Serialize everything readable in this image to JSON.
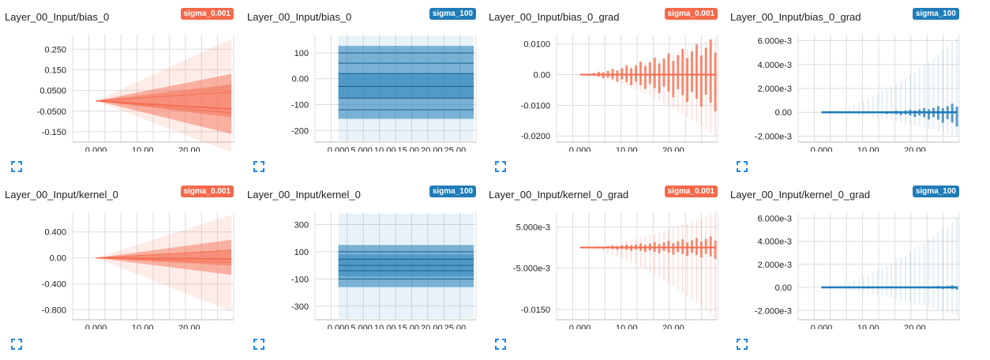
{
  "colors": {
    "sigma_0.001": "#f4694b",
    "sigma_100": "#1f7cb8",
    "grid": "#dcdcdc"
  },
  "panels": [
    {
      "title": "Layer_00_Input/bias_0",
      "run": "sigma_0.001",
      "color": "#f4694b",
      "chart_data": {
        "type": "area",
        "shape": "widen",
        "x": [
          0,
          29
        ],
        "xticks": [
          "0.000",
          "10.00",
          "20.00"
        ],
        "xtick_values": [
          0,
          10,
          20
        ],
        "xlim": [
          -5,
          29.5
        ],
        "yticks": [
          "0.250",
          "0.150",
          "0.0500",
          "-0.0500",
          "-0.150"
        ],
        "ytick_values": [
          0.25,
          0.15,
          0.05,
          -0.05,
          -0.15
        ],
        "ylim": [
          -0.2,
          0.32
        ],
        "start": 0.0,
        "outer_end": [
          -0.25,
          0.3
        ],
        "band_end": [
          -0.16,
          0.13
        ],
        "inner_end": [
          -0.08,
          0.08
        ],
        "median_end": -0.04
      },
      "expand_icon": "fullscreen-icon"
    },
    {
      "title": "Layer_00_Input/bias_0",
      "run": "sigma_100",
      "color": "#1f7cb8",
      "chart_data": {
        "type": "area",
        "shape": "flat",
        "x": [
          0,
          29
        ],
        "xticks": [
          "0.000",
          "5.000",
          "10.00",
          "15.00",
          "20.00",
          "25.00"
        ],
        "xtick_values": [
          0,
          5,
          10,
          15,
          20,
          25
        ],
        "xlim": [
          -5,
          29.5
        ],
        "yticks": [
          "100",
          "0.00",
          "-100",
          "-200"
        ],
        "ytick_values": [
          100,
          0,
          -100,
          -200
        ],
        "ylim": [
          -245,
          170
        ],
        "outer": [
          -240,
          165
        ],
        "band": [
          -155,
          127
        ],
        "inner": [
          -75,
          20
        ],
        "lines": [
          100,
          60,
          20,
          -30,
          -75,
          -120
        ]
      },
      "expand_icon": "fullscreen-icon"
    },
    {
      "title": "Layer_00_Input/bias_0_grad",
      "run": "sigma_0.001",
      "color": "#f4694b",
      "chart_data": {
        "type": "area",
        "shape": "spiky",
        "x": [
          0,
          29
        ],
        "xticks": [
          "0.000",
          "10.00",
          "20.00"
        ],
        "xtick_values": [
          0,
          10,
          20
        ],
        "xlim": [
          -5,
          29.5
        ],
        "yticks": [
          "0.0100",
          "0.00",
          "-0.0100",
          "-0.0200"
        ],
        "ytick_values": [
          0.01,
          0,
          -0.01,
          -0.02
        ],
        "ylim": [
          -0.022,
          0.013
        ],
        "outer_end": [
          -0.02,
          0.012
        ],
        "band_end": [
          -0.012,
          0.012
        ]
      },
      "expand_icon": "fullscreen-icon"
    },
    {
      "title": "Layer_00_Input/bias_0_grad",
      "run": "sigma_100",
      "color": "#1f7cb8",
      "chart_data": {
        "type": "area",
        "shape": "spiky-small",
        "x": [
          0,
          29
        ],
        "xticks": [
          "0.000",
          "10.00",
          "20.00"
        ],
        "xtick_values": [
          0,
          10,
          20
        ],
        "xlim": [
          -5,
          29.5
        ],
        "yticks": [
          "6.000e-3",
          "4.000e-3",
          "2.000e-3",
          "0.00",
          "-2.000e-3"
        ],
        "ytick_values": [
          0.006,
          0.004,
          0.002,
          0,
          -0.002
        ],
        "ylim": [
          -0.0025,
          0.0065
        ],
        "outer_end": [
          -0.002,
          0.0062
        ],
        "band_end": [
          -0.0012,
          0.0008
        ]
      },
      "expand_icon": "fullscreen-icon"
    },
    {
      "title": "Layer_00_Input/kernel_0",
      "run": "sigma_0.001",
      "color": "#f4694b",
      "chart_data": {
        "type": "area",
        "shape": "widen",
        "x": [
          0,
          29
        ],
        "xticks": [
          "0.000",
          "10.00",
          "20.00"
        ],
        "xtick_values": [
          0,
          10,
          20
        ],
        "xlim": [
          -5,
          29.5
        ],
        "yticks": [
          "0.400",
          "0.00",
          "-0.400",
          "-0.800"
        ],
        "ytick_values": [
          0.4,
          0,
          -0.4,
          -0.8
        ],
        "ylim": [
          -0.95,
          0.7
        ],
        "start": 0.0,
        "outer_end": [
          -0.82,
          0.66
        ],
        "band_end": [
          -0.26,
          0.28
        ],
        "inner_end": [
          -0.12,
          0.12
        ],
        "median_end": -0.02
      },
      "expand_icon": "fullscreen-icon"
    },
    {
      "title": "Layer_00_Input/kernel_0",
      "run": "sigma_100",
      "color": "#1f7cb8",
      "chart_data": {
        "type": "area",
        "shape": "flat",
        "x": [
          0,
          29
        ],
        "xticks": [
          "0.000",
          "5.000",
          "10.00",
          "15.00",
          "20.00",
          "25.00"
        ],
        "xtick_values": [
          0,
          5,
          10,
          15,
          20,
          25
        ],
        "xlim": [
          -5,
          29.5
        ],
        "yticks": [
          "300",
          "100",
          "-100",
          "-300"
        ],
        "ytick_values": [
          300,
          100,
          -100,
          -300
        ],
        "ylim": [
          -400,
          390
        ],
        "outer": [
          -390,
          380
        ],
        "band": [
          -160,
          150
        ],
        "inner": [
          -80,
          80
        ],
        "lines": [
          100,
          45,
          0,
          -40,
          -100
        ]
      },
      "expand_icon": "fullscreen-icon"
    },
    {
      "title": "Layer_00_Input/kernel_0_grad",
      "run": "sigma_0.001",
      "color": "#f4694b",
      "chart_data": {
        "type": "area",
        "shape": "spiky",
        "x": [
          0,
          29
        ],
        "xticks": [
          "0.000",
          "10.00",
          "20.00"
        ],
        "xtick_values": [
          0,
          10,
          20
        ],
        "xlim": [
          -5,
          29.5
        ],
        "yticks": [
          "5.000e-3",
          "-5.000e-3",
          "-0.0150"
        ],
        "ytick_values": [
          0.005,
          -0.005,
          -0.015
        ],
        "ylim": [
          -0.0175,
          0.0085
        ],
        "outer_end": [
          -0.017,
          0.0085
        ],
        "band_end": [
          -0.0028,
          0.0028
        ]
      },
      "expand_icon": "fullscreen-icon"
    },
    {
      "title": "Layer_00_Input/kernel_0_grad",
      "run": "sigma_100",
      "color": "#1f7cb8",
      "chart_data": {
        "type": "area",
        "shape": "spiky-small",
        "x": [
          0,
          29
        ],
        "xticks": [
          "0.000",
          "10.00",
          "20.00"
        ],
        "xtick_values": [
          0,
          10,
          20
        ],
        "xlim": [
          -5,
          29.5
        ],
        "yticks": [
          "6.000e-3",
          "4.000e-3",
          "2.000e-3",
          "0.00",
          "-2.000e-3"
        ],
        "ytick_values": [
          0.006,
          0.004,
          0.002,
          0,
          -0.002
        ],
        "ylim": [
          -0.0028,
          0.0065
        ],
        "outer_end": [
          -0.0025,
          0.006
        ],
        "band_end": [
          -0.0002,
          0.0002
        ]
      },
      "expand_icon": "fullscreen-icon"
    }
  ]
}
